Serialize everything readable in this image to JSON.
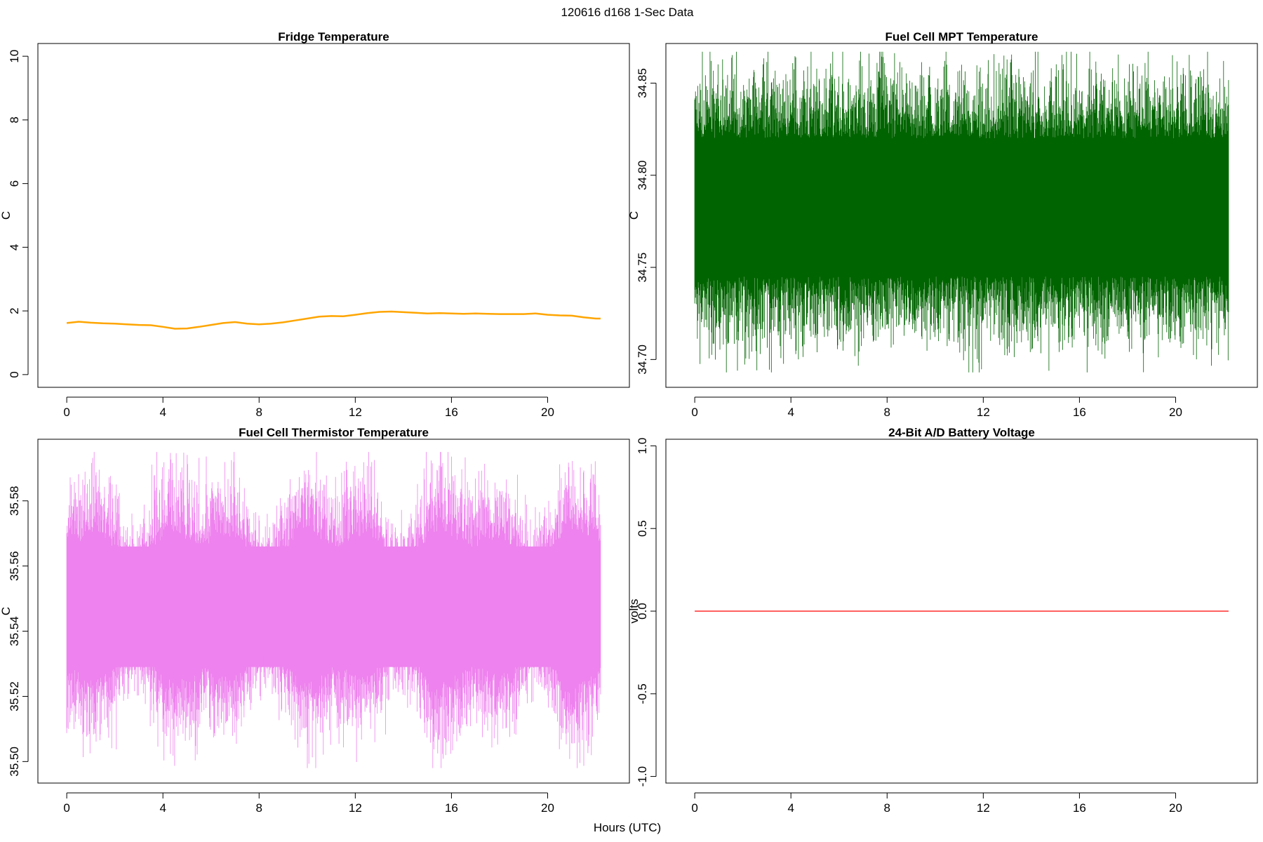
{
  "figure": {
    "suptitle": "120616   d168   1-Sec Data",
    "xlabel": "Hours (UTC)"
  },
  "chart_data": [
    {
      "id": "fridge",
      "type": "line",
      "title": "Fridge Temperature",
      "ylabel": "C",
      "color": "#ffa500",
      "xlim": [
        -1.2,
        23.4
      ],
      "ylim": [
        -0.4,
        10.4
      ],
      "xticks": [
        0,
        4,
        8,
        12,
        16,
        20
      ],
      "yticks": [
        0,
        2,
        4,
        6,
        8,
        10
      ],
      "ytick_labels": [
        "0",
        "2",
        "4",
        "6",
        "8",
        "10"
      ],
      "series": [
        {
          "name": "Fridge Temperature",
          "x": [
            0,
            0.5,
            1,
            1.5,
            2,
            2.5,
            3,
            3.5,
            4,
            4.5,
            5,
            5.5,
            6,
            6.5,
            7,
            7.5,
            8,
            8.5,
            9,
            9.5,
            10,
            10.5,
            11,
            11.5,
            12,
            12.5,
            13,
            13.5,
            14,
            14.5,
            15,
            15.5,
            16,
            16.5,
            17,
            17.5,
            18,
            18.5,
            19,
            19.5,
            20,
            20.5,
            21,
            21.5,
            22,
            22.2
          ],
          "values": [
            1.62,
            1.66,
            1.63,
            1.61,
            1.6,
            1.58,
            1.56,
            1.55,
            1.5,
            1.44,
            1.45,
            1.5,
            1.56,
            1.62,
            1.65,
            1.6,
            1.58,
            1.6,
            1.64,
            1.7,
            1.76,
            1.82,
            1.84,
            1.83,
            1.88,
            1.93,
            1.97,
            1.98,
            1.96,
            1.94,
            1.92,
            1.93,
            1.92,
            1.91,
            1.92,
            1.91,
            1.9,
            1.9,
            1.9,
            1.92,
            1.88,
            1.86,
            1.85,
            1.8,
            1.76,
            1.76
          ]
        }
      ]
    },
    {
      "id": "mpt",
      "type": "line",
      "title": "Fuel Cell MPT Temperature",
      "ylabel": "C",
      "color": "#006400",
      "xlim": [
        -1.2,
        23.4
      ],
      "ylim": [
        34.6849,
        34.8715
      ],
      "xticks": [
        0,
        4,
        8,
        12,
        16,
        20
      ],
      "yticks": [
        34.7,
        34.75,
        34.8,
        34.85
      ],
      "ytick_labels": [
        "34.70",
        "34.75",
        "34.80",
        "34.85"
      ],
      "series": [
        {
          "name": "Fuel Cell MPT Temperature",
          "x_range": [
            0,
            22.2
          ],
          "band_low": 34.745,
          "band_high": 34.82,
          "min": 34.693,
          "max": 34.867
        }
      ]
    },
    {
      "id": "thermistor",
      "type": "line",
      "title": "Fuel Cell Thermistor Temperature",
      "ylabel": "C",
      "color": "#ee82ee",
      "xlim": [
        -1.2,
        23.4
      ],
      "ylim": [
        35.4934,
        35.5989
      ],
      "xticks": [
        0,
        4,
        8,
        12,
        16,
        20
      ],
      "yticks": [
        35.5,
        35.52,
        35.54,
        35.56,
        35.58
      ],
      "ytick_labels": [
        "35.50",
        "35.52",
        "35.54",
        "35.56",
        "35.58"
      ],
      "series": [
        {
          "name": "Fuel Cell Thermistor Temperature",
          "x_range": [
            0,
            22.2
          ],
          "band_low": 35.529,
          "band_high": 35.566,
          "min": 35.498,
          "max": 35.595
        }
      ]
    },
    {
      "id": "battery",
      "type": "line",
      "title": "24-Bit A/D Battery Voltage",
      "ylabel": "volts",
      "color": "#ff0000",
      "xlim": [
        -1.2,
        23.4
      ],
      "ylim": [
        -1.04,
        1.04
      ],
      "xticks": [
        0,
        4,
        8,
        12,
        16,
        20
      ],
      "yticks": [
        -1.0,
        -0.5,
        0.0,
        0.5,
        1.0
      ],
      "ytick_labels": [
        "-1.0",
        "-0.5",
        "0.0",
        "0.5",
        "1.0"
      ],
      "series": [
        {
          "name": "24-Bit A/D Battery Voltage",
          "x": [
            0,
            22.2
          ],
          "values": [
            0,
            0
          ]
        }
      ]
    }
  ]
}
